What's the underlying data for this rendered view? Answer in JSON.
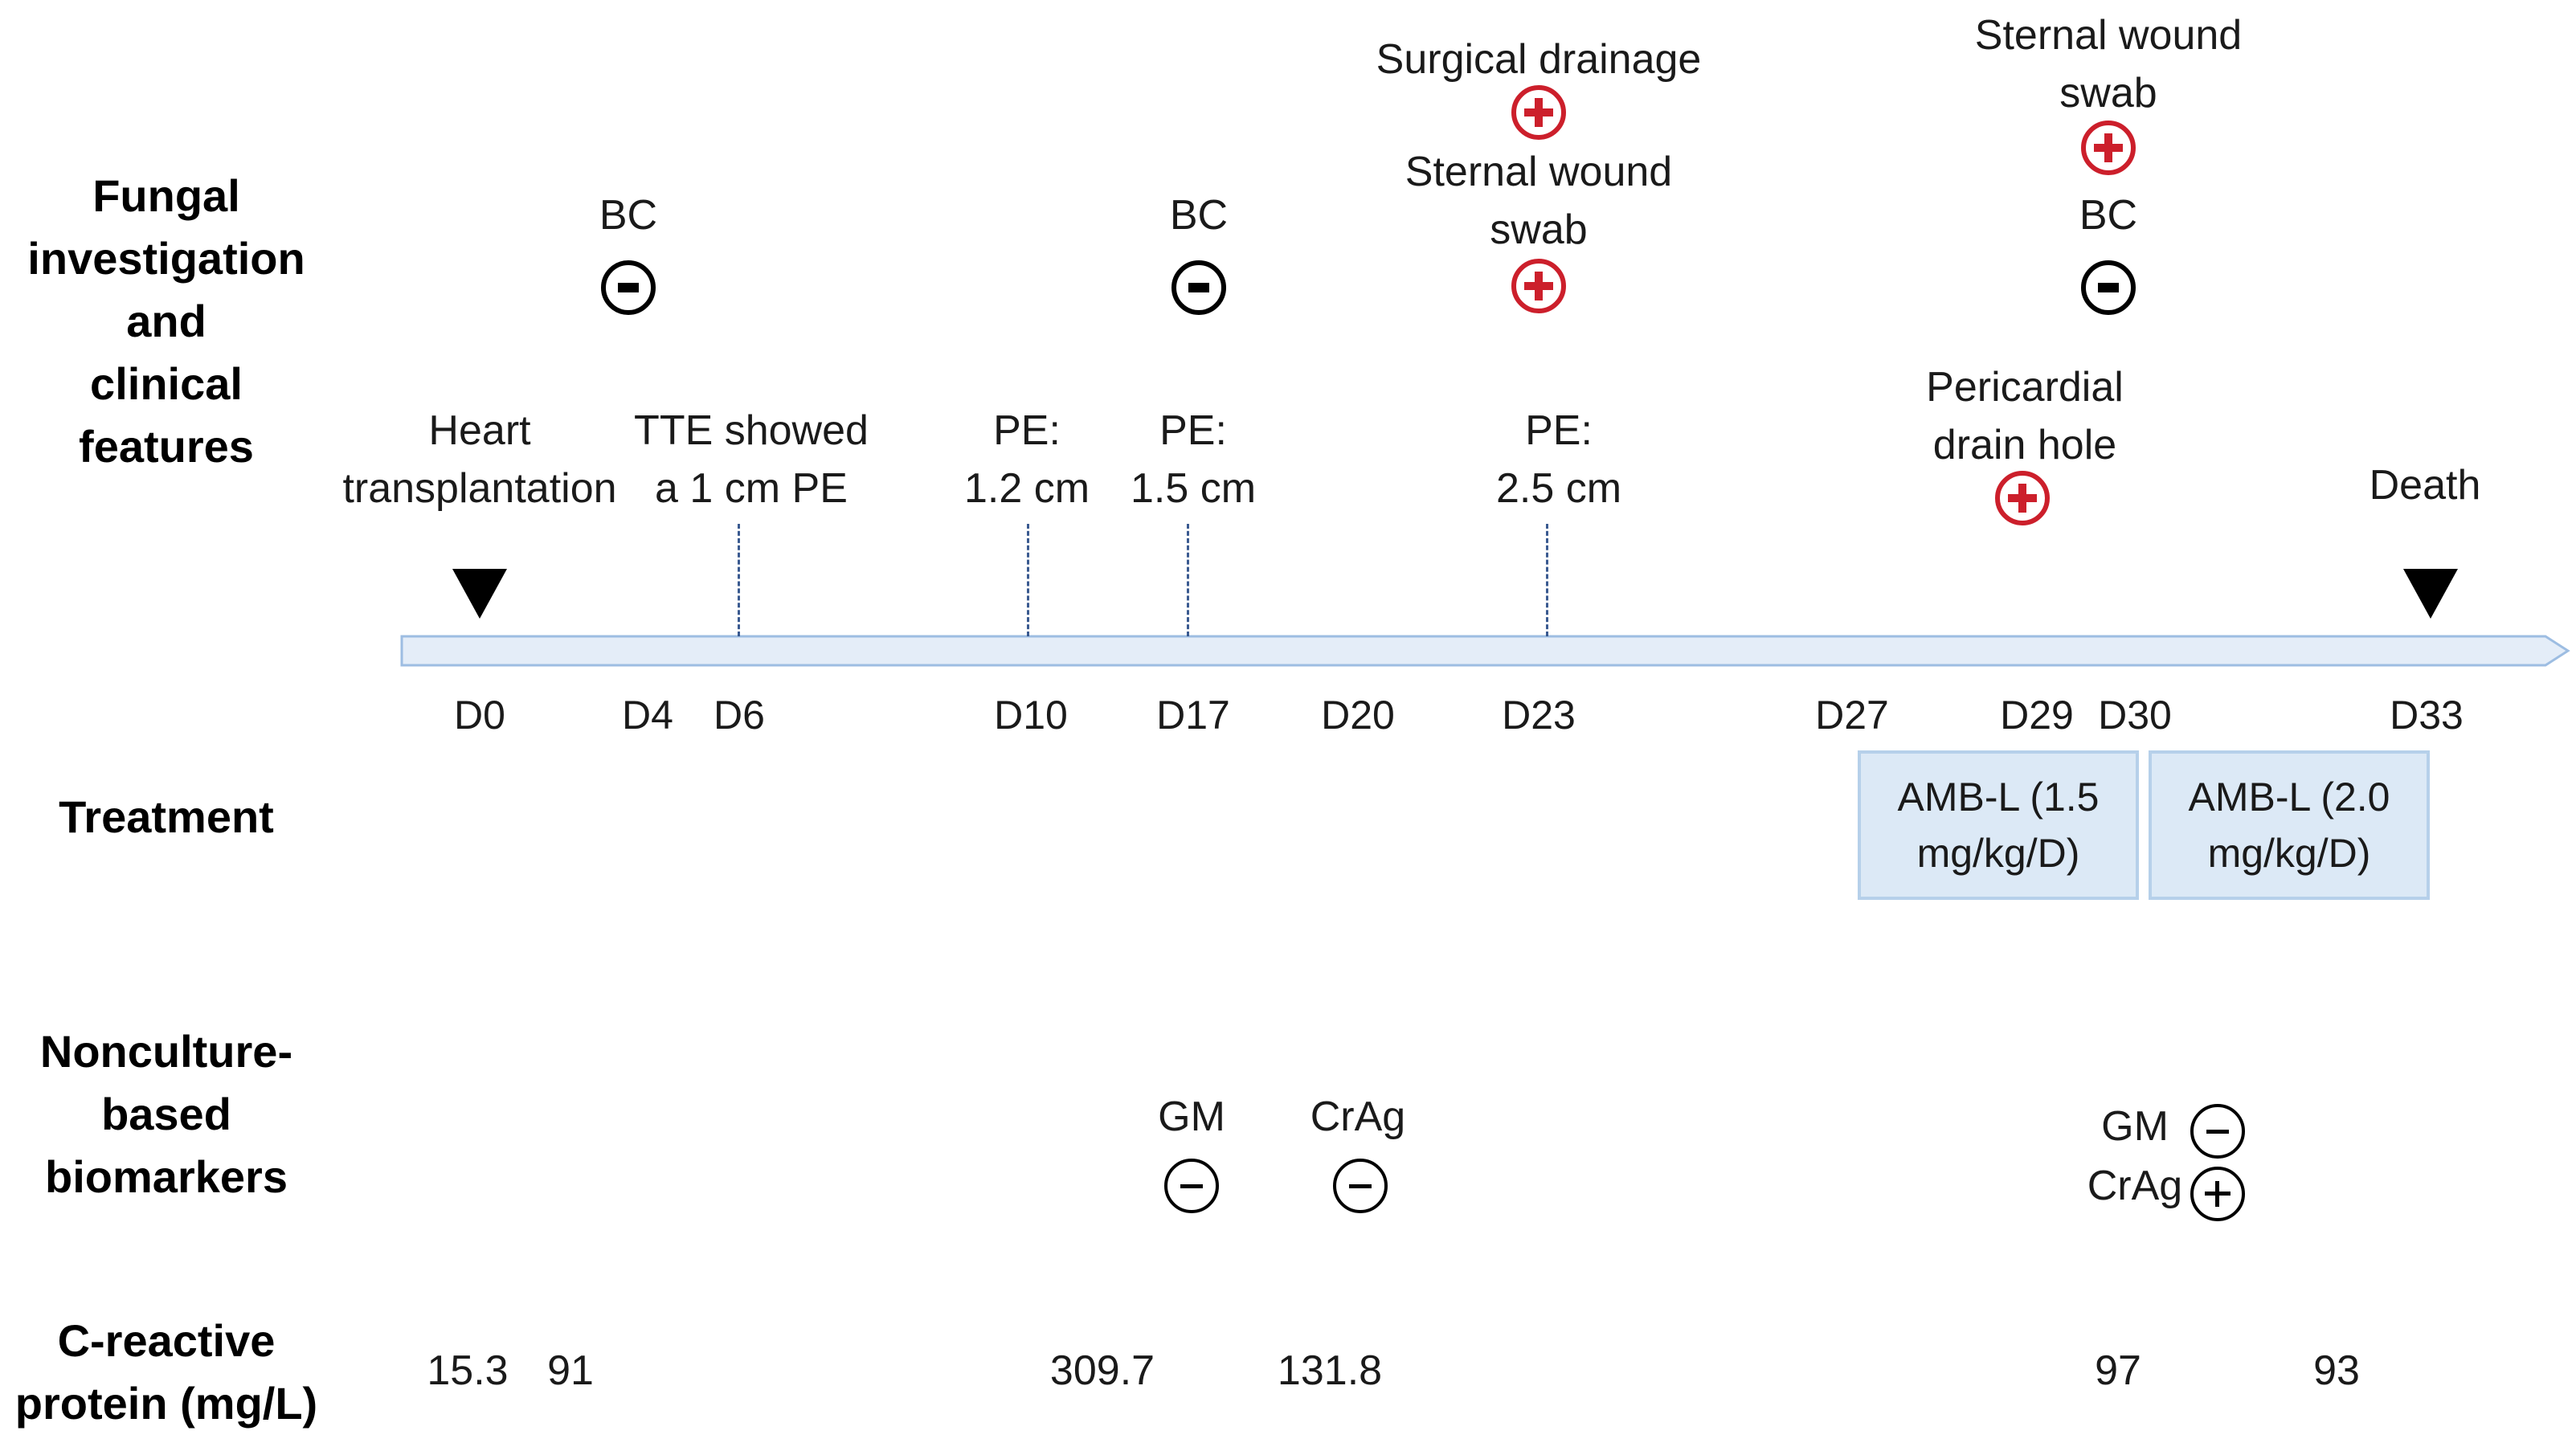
{
  "row_labels": {
    "fungal": [
      "Fungal",
      "investigation",
      "and",
      "clinical",
      "features"
    ],
    "treatment": [
      "Treatment"
    ],
    "biomarkers": [
      "Nonculture-",
      "based",
      "biomarkers"
    ],
    "crp": [
      "C-reactive",
      "protein (mg/L)"
    ]
  },
  "timeline_days": [
    "D0",
    "D4",
    "D6",
    "D10",
    "D17",
    "D20",
    "D23",
    "D27",
    "D29",
    "D30",
    "D33"
  ],
  "events": {
    "heart_tx": [
      "Heart",
      "transplantation"
    ],
    "tte": [
      "TTE showed",
      "a 1 cm PE"
    ],
    "pe_d10": [
      "PE:",
      "1.2 cm"
    ],
    "pe_d17": [
      "PE:",
      "1.5 cm"
    ],
    "pe_d23": [
      "PE:",
      "2.5 cm"
    ],
    "pericardial": [
      "Pericardial",
      "drain hole"
    ],
    "death": "Death"
  },
  "fungal_tests": {
    "bc_d4": "BC",
    "bc_d17": "BC",
    "surgical_drainage": "Surgical drainage",
    "sternal_swab_d23": [
      "Sternal wound",
      "swab"
    ],
    "sternal_swab_d30": [
      "Sternal wound",
      "swab"
    ],
    "bc_d30": "BC"
  },
  "treatment": {
    "amb1": [
      "AMB-L (1.5",
      "mg/kg/D)"
    ],
    "amb2": [
      "AMB-L (2.0",
      "mg/kg/D)"
    ]
  },
  "biomarkers": {
    "gm_d17": "GM",
    "crag_d20": "CrAg",
    "gm_d30": "GM",
    "crag_d30": "CrAg"
  },
  "crp_values": [
    "15.3",
    "91",
    "309.7",
    "131.8",
    "97",
    "93"
  ],
  "colors": {
    "positive": "#cc1f2b",
    "negative": "#000000",
    "bar_fill": "#e4edf8",
    "bar_stroke": "#9dbde2",
    "box_fill": "#dce9f6"
  }
}
